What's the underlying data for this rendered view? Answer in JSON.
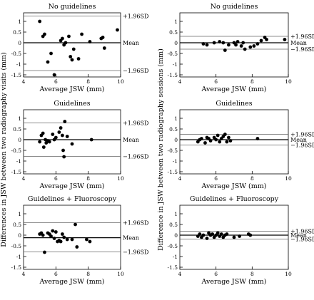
{
  "left_ylabel": "Differences in JSW between two radiography visits (mm)",
  "right_ylabel": "Difference in JSW between two radiography sessions (mm)",
  "chart_data": [
    {
      "type": "scatter",
      "title": "No guidelines",
      "xlabel": "Average JSW (mm)",
      "xlim": [
        4,
        10
      ],
      "ylim": [
        -1.6,
        1.4
      ],
      "xticks": [
        "4",
        "6",
        "8",
        "10"
      ],
      "yticks": [
        -1.5,
        -1,
        -0.5,
        0,
        0.5,
        1
      ],
      "ytick_labels": [
        "-1.5",
        "-1",
        "-0.5",
        "0",
        "0.5",
        "1"
      ],
      "lines": [
        {
          "value": 1.25,
          "label": "+1.96SD",
          "style": "sd"
        },
        {
          "value": 0.0,
          "label": "Mean",
          "style": "mean"
        },
        {
          "value": -1.3,
          "label": "−1.96SD",
          "style": "sd"
        }
      ],
      "points": [
        [
          5.0,
          1.0
        ],
        [
          5.2,
          0.3
        ],
        [
          5.3,
          0.4
        ],
        [
          5.5,
          -0.9
        ],
        [
          5.7,
          -0.5
        ],
        [
          5.9,
          -1.5
        ],
        [
          6.3,
          0.1
        ],
        [
          6.4,
          0.2
        ],
        [
          6.5,
          -0.1
        ],
        [
          6.6,
          0.0
        ],
        [
          6.8,
          0.3
        ],
        [
          6.9,
          -0.65
        ],
        [
          7.0,
          -0.8
        ],
        [
          7.1,
          -0.3
        ],
        [
          7.4,
          -0.75
        ],
        [
          7.6,
          0.4
        ],
        [
          8.1,
          0.05
        ],
        [
          8.8,
          0.2
        ],
        [
          8.9,
          0.25
        ],
        [
          9.0,
          -0.25
        ],
        [
          9.8,
          0.6
        ]
      ]
    },
    {
      "type": "scatter",
      "title": "No guidelines",
      "xlabel": "Average JSW (mm)",
      "xlim": [
        4,
        10
      ],
      "ylim": [
        -1.6,
        1.4
      ],
      "xticks": [
        "4",
        "6",
        "8",
        "10"
      ],
      "yticks": [
        -1.5,
        -1,
        -0.5,
        0,
        0.5,
        1
      ],
      "ytick_labels": [
        "-1.5",
        "-1",
        "-0.5",
        "0",
        "0.5",
        "1"
      ],
      "lines": [
        {
          "value": 0.3,
          "label": "+1.96SD",
          "style": "sd"
        },
        {
          "value": 0.0,
          "label": "Mean",
          "style": "mean"
        },
        {
          "value": -0.3,
          "label": "−1.96SD",
          "style": "sd"
        }
      ],
      "points": [
        [
          5.3,
          -0.05
        ],
        [
          5.5,
          -0.1
        ],
        [
          5.9,
          0.0
        ],
        [
          6.2,
          0.05
        ],
        [
          6.4,
          0.0
        ],
        [
          6.5,
          -0.35
        ],
        [
          6.7,
          -0.1
        ],
        [
          7.0,
          0.0
        ],
        [
          7.1,
          -0.1
        ],
        [
          7.2,
          0.05
        ],
        [
          7.4,
          -0.15
        ],
        [
          7.5,
          0.0
        ],
        [
          7.6,
          -0.3
        ],
        [
          7.9,
          -0.2
        ],
        [
          8.1,
          -0.15
        ],
        [
          8.3,
          -0.05
        ],
        [
          8.5,
          0.1
        ],
        [
          8.7,
          0.25
        ],
        [
          8.8,
          0.15
        ],
        [
          9.8,
          0.15
        ]
      ]
    },
    {
      "type": "scatter",
      "title": "Guidelines",
      "xlabel": "Average JSW (mm)",
      "xlim": [
        4,
        10
      ],
      "ylim": [
        -1.6,
        1.4
      ],
      "xticks": [
        "4",
        "6",
        "8",
        "10"
      ],
      "yticks": [
        -1.5,
        -1,
        -0.5,
        0,
        0.5,
        1
      ],
      "ytick_labels": [
        "-1.5",
        "-1",
        "-0.5",
        "0",
        "0.5",
        "1"
      ],
      "lines": [
        {
          "value": 0.78,
          "label": "+1.96SD",
          "style": "sd"
        },
        {
          "value": 0.0,
          "label": "Mean",
          "style": "mean"
        },
        {
          "value": -0.78,
          "label": "−1.96SD",
          "style": "sd"
        }
      ],
      "points": [
        [
          5.0,
          -0.1
        ],
        [
          5.1,
          0.2
        ],
        [
          5.2,
          0.3
        ],
        [
          5.25,
          -0.35
        ],
        [
          5.35,
          0.0
        ],
        [
          5.4,
          -0.15
        ],
        [
          5.5,
          -0.05
        ],
        [
          5.6,
          -0.1
        ],
        [
          5.8,
          0.25
        ],
        [
          5.9,
          0.0
        ],
        [
          6.0,
          0.1
        ],
        [
          6.2,
          0.35
        ],
        [
          6.3,
          0.55
        ],
        [
          6.4,
          0.2
        ],
        [
          6.45,
          -0.5
        ],
        [
          6.5,
          -0.8
        ],
        [
          6.55,
          0.85
        ],
        [
          6.7,
          0.15
        ],
        [
          7.0,
          -0.2
        ],
        [
          8.2,
          0.0
        ]
      ]
    },
    {
      "type": "scatter",
      "title": "Guidelines",
      "xlabel": "Average JSW (mm)",
      "xlim": [
        4,
        10
      ],
      "ylim": [
        -1.6,
        1.4
      ],
      "xticks": [
        "4",
        "6",
        "8",
        "10"
      ],
      "yticks": [
        -1.5,
        -1,
        -0.5,
        0,
        0.5,
        1
      ],
      "ytick_labels": [
        "-1.5",
        "-1",
        "-0.5",
        "0",
        "0.5",
        "1"
      ],
      "lines": [
        {
          "value": 0.25,
          "label": "+1.96SD",
          "style": "sd"
        },
        {
          "value": 0.0,
          "label": "Mean",
          "style": "mean"
        },
        {
          "value": -0.25,
          "label": "−1.96SD",
          "style": "sd"
        }
      ],
      "points": [
        [
          5.0,
          -0.1
        ],
        [
          5.1,
          0.0
        ],
        [
          5.2,
          0.05
        ],
        [
          5.4,
          -0.15
        ],
        [
          5.5,
          0.1
        ],
        [
          5.6,
          0.05
        ],
        [
          5.7,
          -0.05
        ],
        [
          5.9,
          0.1
        ],
        [
          6.0,
          0.0
        ],
        [
          6.1,
          0.2
        ],
        [
          6.2,
          -0.1
        ],
        [
          6.3,
          0.05
        ],
        [
          6.4,
          0.15
        ],
        [
          6.5,
          0.25
        ],
        [
          6.6,
          -0.1
        ],
        [
          6.7,
          0.1
        ],
        [
          6.8,
          -0.05
        ],
        [
          8.3,
          0.05
        ]
      ]
    },
    {
      "type": "scatter",
      "title": "Guidelines + Fluoroscopy",
      "xlabel": "Average JSW (mm)",
      "xlim": [
        4,
        10
      ],
      "ylim": [
        -1.6,
        1.4
      ],
      "xticks": [
        "4",
        "6",
        "8",
        "10"
      ],
      "yticks": [
        -1.5,
        -1,
        -0.5,
        0,
        0.5,
        1
      ],
      "ytick_labels": [
        "-1.5",
        "-1",
        "-0.5",
        "0",
        "0.5",
        "1"
      ],
      "lines": [
        {
          "value": 0.58,
          "label": "+1.96SD",
          "style": "sd"
        },
        {
          "value": -0.12,
          "label": "Mean",
          "style": "mean"
        },
        {
          "value": -0.78,
          "label": "−1.96SD",
          "style": "sd"
        }
      ],
      "points": [
        [
          5.0,
          0.05
        ],
        [
          5.1,
          0.1
        ],
        [
          5.2,
          0.0
        ],
        [
          5.3,
          -0.8
        ],
        [
          5.5,
          0.1
        ],
        [
          5.6,
          0.05
        ],
        [
          5.7,
          -0.05
        ],
        [
          5.8,
          0.2
        ],
        [
          5.9,
          -0.15
        ],
        [
          6.0,
          0.15
        ],
        [
          6.1,
          -0.3
        ],
        [
          6.2,
          -0.25
        ],
        [
          6.3,
          -0.3
        ],
        [
          6.4,
          0.05
        ],
        [
          6.5,
          -0.1
        ],
        [
          6.7,
          -0.2
        ],
        [
          7.0,
          -0.2
        ],
        [
          7.2,
          0.5
        ],
        [
          7.3,
          -0.55
        ],
        [
          7.9,
          -0.2
        ],
        [
          8.1,
          -0.3
        ]
      ]
    },
    {
      "type": "scatter",
      "title": "Guidelines + Fluoroscopy",
      "xlabel": "Average JSW (mm)",
      "xlim": [
        4,
        10
      ],
      "ylim": [
        -1.6,
        1.4
      ],
      "xticks": [
        "4",
        "6",
        "8",
        "10"
      ],
      "yticks": [
        -1.5,
        -1,
        -0.5,
        0,
        0.5,
        1
      ],
      "ytick_labels": [
        "-1.5",
        "-1",
        "-0.5",
        "0",
        "0.5",
        "1"
      ],
      "lines": [
        {
          "value": 0.18,
          "label": "+1.96SD",
          "style": "sd"
        },
        {
          "value": 0.0,
          "label": "Mean",
          "style": "mean"
        },
        {
          "value": -0.18,
          "label": "−1.96SD",
          "style": "sd"
        }
      ],
      "points": [
        [
          5.0,
          -0.05
        ],
        [
          5.1,
          0.05
        ],
        [
          5.2,
          -0.1
        ],
        [
          5.3,
          0.0
        ],
        [
          5.5,
          -0.15
        ],
        [
          5.6,
          0.1
        ],
        [
          5.7,
          0.0
        ],
        [
          5.8,
          0.05
        ],
        [
          5.9,
          -0.1
        ],
        [
          6.0,
          0.0
        ],
        [
          6.1,
          0.1
        ],
        [
          6.2,
          -0.05
        ],
        [
          6.3,
          0.05
        ],
        [
          6.4,
          -0.1
        ],
        [
          6.5,
          0.0
        ],
        [
          6.6,
          0.05
        ],
        [
          7.0,
          -0.1
        ],
        [
          7.3,
          -0.05
        ],
        [
          7.8,
          0.05
        ],
        [
          7.9,
          0.0
        ]
      ]
    }
  ]
}
